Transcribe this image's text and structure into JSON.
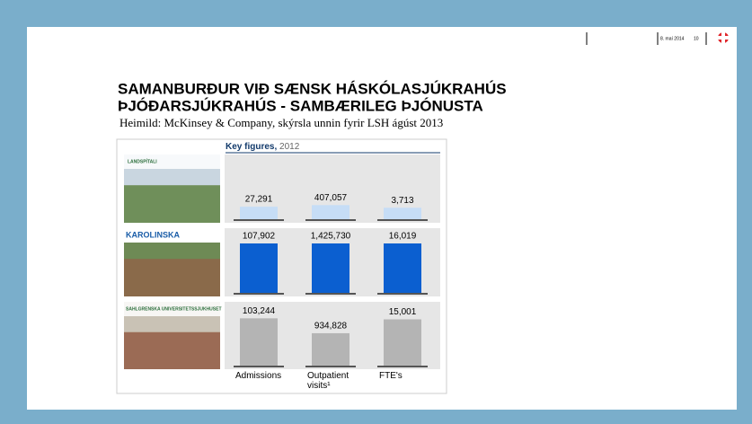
{
  "header": {
    "date": "8. maí 2014",
    "page": "10"
  },
  "title": [
    "SAMANBURÐUR VIÐ SÆNSK HÁSKÓLASJÚKRAHÚS",
    "ÞJÓÐARSJÚKRAHÚS - SAMBÆRILEG  ÞJÓNUSTA"
  ],
  "source": "Heimild: McKinsey & Company, skýrsla unnin fyrir LSH ágúst 2013",
  "chart_data": {
    "type": "bar",
    "title": "Key figures,",
    "subtitle": "2012",
    "categories": [
      "Admissions",
      "Outpatient visits¹",
      "FTE's"
    ],
    "series": [
      {
        "name": "LANDSPÍTALI",
        "color": "#c6ddf6",
        "values": [
          27291,
          407057,
          3713
        ],
        "value_labels": [
          "27,291",
          "407,057",
          "3,713"
        ]
      },
      {
        "name": "KAROLINSKA",
        "color": "#0b5fd0",
        "values": [
          107902,
          1425730,
          16019
        ],
        "value_labels": [
          "107,902",
          "1,425,730",
          "16,019"
        ]
      },
      {
        "name": "SAHLGRENSKA UNIVERSITETSSJUKHUSET",
        "color": "#b4b4b4",
        "values": [
          103244,
          934828,
          15001
        ],
        "value_labels": [
          "103,244",
          "934,828",
          "15,001"
        ]
      }
    ]
  }
}
